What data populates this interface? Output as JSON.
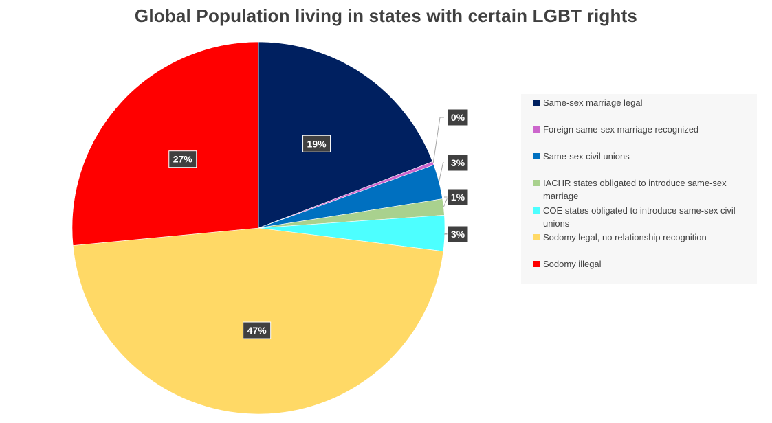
{
  "chart_data": {
    "type": "pie",
    "title": "Global Population living in states with certain LGBT rights",
    "slices": [
      {
        "label": "Same-sex marriage legal",
        "value": 19.2,
        "display": "19%",
        "color": "#002060"
      },
      {
        "label": "Foreign same-sex marriage recognized",
        "value": 0.3,
        "display": "0%",
        "color": "#cc66cc"
      },
      {
        "label": "Same-sex civil unions",
        "value": 3.0,
        "display": "3%",
        "color": "#0070c0"
      },
      {
        "label": "IACHR states obligated to introduce same-sex marriage",
        "value": 1.4,
        "display": "1%",
        "color": "#a9d18e"
      },
      {
        "label": "COE states obligated to introduce same-sex civil unions",
        "value": 3.1,
        "display": "3%",
        "color": "#4dffff"
      },
      {
        "label": "Sodomy legal, no relationship recognition",
        "value": 46.5,
        "display": "47%",
        "color": "#ffd966"
      },
      {
        "label": "Sodomy illegal",
        "value": 26.5,
        "display": "27%",
        "color": "#ff0000"
      }
    ],
    "legend_position": "right",
    "start_angle": "12 o'clock, clockwise"
  }
}
